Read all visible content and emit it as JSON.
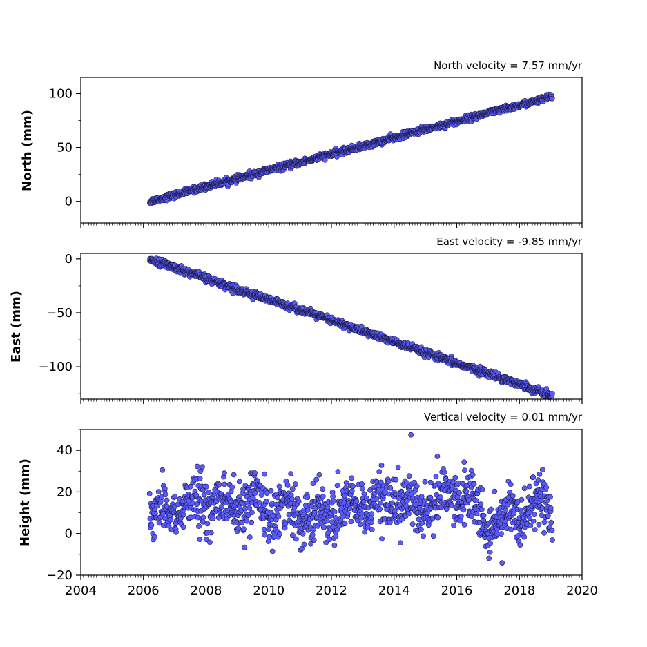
{
  "chart_data": [
    {
      "type": "scatter",
      "title": "North velocity = 7.57 mm/yr",
      "ylabel": "North (mm)",
      "xlim": [
        2004,
        2020
      ],
      "ylim": [
        -20,
        115
      ],
      "yticks": [
        0,
        50,
        100
      ],
      "ytick_labels": [
        "0",
        "50",
        "100"
      ],
      "show_xtick_labels": false,
      "trend": {
        "t_start": 2006.2,
        "t_end": 2019.05,
        "v_start": 0,
        "v_end": 97.3,
        "noise_sd": 1.4
      },
      "series": [
        {
          "x": [
            2006.2,
            2007.0,
            2008.0,
            2009.0,
            2010.0,
            2011.0,
            2012.0,
            2013.0,
            2014.0,
            2015.0,
            2016.0,
            2017.0,
            2018.0,
            2019.05
          ],
          "values": [
            0,
            6,
            14,
            21,
            29,
            36,
            44,
            51,
            59,
            67,
            74,
            82,
            89,
            97
          ]
        }
      ]
    },
    {
      "type": "scatter",
      "title": "East velocity = -9.85 mm/yr",
      "ylabel": "East (mm)",
      "xlim": [
        2004,
        2020
      ],
      "ylim": [
        -130,
        5
      ],
      "yticks": [
        0,
        -50,
        -100
      ],
      "ytick_labels": [
        "0",
        "−50",
        "−100"
      ],
      "show_xtick_labels": false,
      "trend": {
        "t_start": 2006.2,
        "t_end": 2019.05,
        "v_start": 0,
        "v_end": -127,
        "noise_sd": 1.6
      },
      "series": [
        {
          "x": [
            2006.2,
            2007.0,
            2008.0,
            2009.0,
            2010.0,
            2011.0,
            2012.0,
            2013.0,
            2014.0,
            2015.0,
            2016.0,
            2017.0,
            2018.0,
            2019.05
          ],
          "values": [
            0,
            -8,
            -18,
            -28,
            -38,
            -47,
            -57,
            -67,
            -77,
            -87,
            -97,
            -106,
            -116,
            -127
          ]
        }
      ]
    },
    {
      "type": "scatter",
      "title": "Vertical velocity = 0.01 mm/yr",
      "ylabel": "Height (mm)",
      "xlim": [
        2004,
        2020
      ],
      "ylim": [
        -20,
        50
      ],
      "yticks": [
        -20,
        0,
        20,
        40
      ],
      "ytick_labels": [
        "−20",
        "0",
        "20",
        "40"
      ],
      "show_xtick_labels": true,
      "xticks": [
        2004,
        2006,
        2008,
        2010,
        2012,
        2014,
        2016,
        2018,
        2020
      ],
      "xtick_labels": [
        "2004",
        "2006",
        "2008",
        "2010",
        "2012",
        "2014",
        "2016",
        "2018",
        "2020"
      ],
      "trend": {
        "t_start": 2006.2,
        "t_end": 2019.05,
        "v_start": 10,
        "v_end": 10,
        "noise_sd": 6.5,
        "seasonal_amp": 4.0
      },
      "series": [
        {
          "x": [
            2006.2,
            2007.0,
            2008.0,
            2009.0,
            2010.0,
            2011.0,
            2012.0,
            2013.0,
            2014.0,
            2015.0,
            2016.0,
            2017.0,
            2018.0,
            2019.05
          ],
          "values": [
            8,
            12,
            15,
            13,
            14,
            9,
            10,
            12,
            15,
            13,
            22,
            3,
            12,
            14
          ]
        }
      ]
    }
  ],
  "colors": {
    "marker_fill": "#5a5aff",
    "marker_edge": "#1a1a40",
    "axes": "#000000"
  }
}
